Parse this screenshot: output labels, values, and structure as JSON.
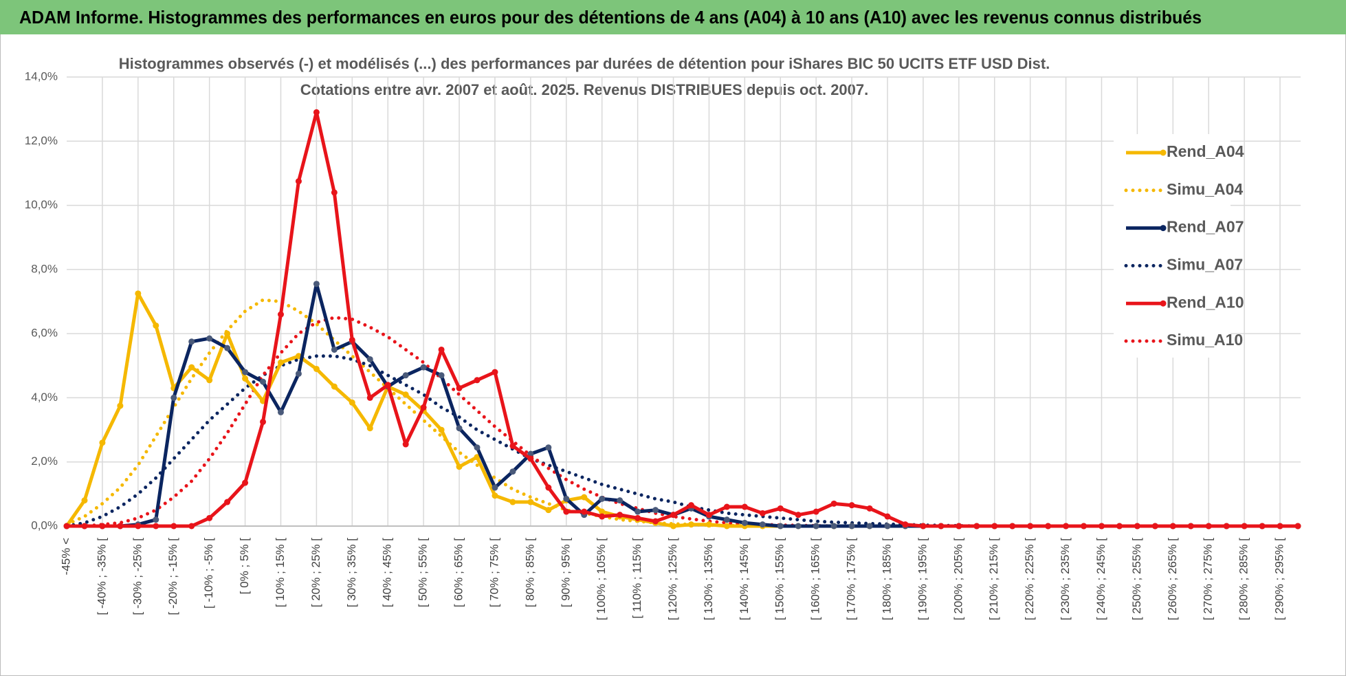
{
  "header": {
    "title": "ADAM Informe. Histogrammes des performances en euros pour des détentions de 4 ans (A04) à 10 ans (A10) avec les revenus connus distribués"
  },
  "chart_data": {
    "type": "line",
    "subtitle": [
      "Histogrammes observés (-) et modélisés (...) des performances par durées de détention pour iShares BIC 50 UCITS ETF USD Dist.",
      "Cotations entre avr. 2007 et août. 2025. Revenus DISTRIBUES depuis oct. 2007."
    ],
    "categories": [
      "-45% <",
      null,
      "[ -40% ; -35% [",
      null,
      "[ -30% ; -25% [",
      null,
      "[ -20% ; -15% [",
      null,
      "[ -10% ; -5% [",
      null,
      "[ 0% ; 5% [",
      null,
      "[ 10% ; 15% [",
      null,
      "[ 20% ; 25% [",
      null,
      "[ 30% ; 35% [",
      null,
      "[ 40% ; 45% [",
      null,
      "[ 50% ; 55% [",
      null,
      "[ 60% ; 65% [",
      null,
      "[ 70% ; 75% [",
      null,
      "[ 80% ; 85% [",
      null,
      "[ 90% ; 95% [",
      null,
      "[ 100% ; 105% [",
      null,
      "[ 110% ; 115% [",
      null,
      "[ 120% ; 125% [",
      null,
      "[ 130% ; 135% [",
      null,
      "[ 140% ; 145% [",
      null,
      "[ 150% ; 155% [",
      null,
      "[ 160% ; 165% [",
      null,
      "[ 170% ; 175% [",
      null,
      "[ 180% ; 185% [",
      null,
      "[ 190% ; 195% [",
      null,
      "[ 200% ; 205% [",
      null,
      "[ 210% ; 215% [",
      null,
      "[ 220% ; 225% [",
      null,
      "[ 230% ; 235% [",
      null,
      "[ 240% ; 245% [",
      null,
      "[ 250% ; 255% [",
      null,
      "[ 260% ; 265% [",
      null,
      "[ 270% ; 275% [",
      null,
      "[ 280% ; 285% [",
      null,
      "[ 290% ; 295% [",
      null
    ],
    "series": [
      {
        "name": "Rend_A04",
        "color": "#f5b800",
        "style": "solid",
        "values": [
          0,
          0.8,
          2.6,
          3.75,
          7.25,
          6.25,
          4.3,
          4.95,
          4.55,
          6.0,
          4.6,
          3.9,
          5.1,
          5.3,
          4.9,
          4.35,
          3.85,
          3.05,
          4.35,
          4.1,
          3.6,
          3.0,
          1.85,
          2.15,
          0.95,
          0.75,
          0.75,
          0.5,
          0.8,
          0.9,
          0.45,
          0.3,
          0.2,
          0.1,
          0,
          0.05,
          0.05,
          0,
          0,
          0,
          0,
          0,
          0,
          0,
          0,
          0,
          0,
          0,
          0,
          0,
          0,
          0,
          0,
          0,
          0,
          0,
          0,
          0,
          0,
          0,
          0,
          0,
          0,
          0,
          0,
          0,
          0,
          0,
          0,
          0
        ]
      },
      {
        "name": "Simu_A04",
        "color": "#f5b800",
        "style": "dotted",
        "values": [
          0.05,
          0.3,
          0.7,
          1.2,
          1.9,
          2.8,
          3.7,
          4.6,
          5.4,
          6.1,
          6.7,
          7.05,
          7.0,
          6.7,
          6.3,
          5.8,
          5.3,
          4.8,
          4.3,
          3.8,
          3.3,
          2.8,
          2.3,
          1.9,
          1.5,
          1.15,
          0.9,
          0.7,
          0.5,
          0.4,
          0.3,
          0.2,
          0.15,
          0.1,
          0.07,
          0.05,
          0.03,
          0.02,
          0.01,
          0,
          0,
          0,
          0,
          0,
          0,
          0,
          0,
          0,
          0,
          0,
          0,
          0,
          0,
          0,
          0,
          0,
          0,
          0,
          0,
          0,
          0,
          0,
          0,
          0,
          0,
          0,
          0,
          0,
          0,
          0
        ]
      },
      {
        "name": "Rend_A07",
        "color": "#0b2560",
        "style": "solid",
        "values": [
          0,
          0,
          0,
          0,
          0.05,
          0.2,
          4.0,
          5.75,
          5.85,
          5.55,
          4.8,
          4.5,
          3.55,
          4.75,
          7.55,
          5.5,
          5.75,
          5.2,
          4.35,
          4.7,
          4.95,
          4.7,
          3.05,
          2.45,
          1.2,
          1.7,
          2.25,
          2.45,
          0.85,
          0.35,
          0.85,
          0.8,
          0.45,
          0.5,
          0.35,
          0.55,
          0.3,
          0.2,
          0.1,
          0.05,
          0,
          0,
          0,
          0,
          0,
          0,
          0,
          0,
          0,
          0,
          0,
          0,
          0,
          0,
          0,
          0,
          0,
          0,
          0,
          0,
          0,
          0,
          0,
          0,
          0,
          0,
          0,
          0,
          0,
          0
        ]
      },
      {
        "name": "Simu_A07",
        "color": "#0b2560",
        "style": "dotted",
        "values": [
          0,
          0.1,
          0.3,
          0.6,
          1.0,
          1.5,
          2.1,
          2.7,
          3.3,
          3.8,
          4.3,
          4.7,
          5.0,
          5.2,
          5.3,
          5.3,
          5.2,
          5.0,
          4.7,
          4.4,
          4.1,
          3.7,
          3.4,
          3.0,
          2.7,
          2.4,
          2.1,
          1.9,
          1.7,
          1.5,
          1.3,
          1.15,
          1.0,
          0.85,
          0.75,
          0.6,
          0.5,
          0.4,
          0.35,
          0.3,
          0.25,
          0.2,
          0.15,
          0.12,
          0.1,
          0.08,
          0.06,
          0.05,
          0.03,
          0.02,
          0.01,
          0,
          0,
          0,
          0,
          0,
          0,
          0,
          0,
          0,
          0,
          0,
          0,
          0,
          0,
          0,
          0,
          0,
          0,
          0
        ]
      },
      {
        "name": "Rend_A10",
        "color": "#e8141a",
        "style": "solid",
        "values": [
          0,
          0,
          0,
          0,
          0,
          0,
          0,
          0,
          0.25,
          0.75,
          1.35,
          3.25,
          6.6,
          10.75,
          12.9,
          10.4,
          5.8,
          4.0,
          4.4,
          2.55,
          3.7,
          5.5,
          4.3,
          4.55,
          4.8,
          2.5,
          2.1,
          1.2,
          0.45,
          0.45,
          0.3,
          0.35,
          0.25,
          0.15,
          0.35,
          0.65,
          0.35,
          0.6,
          0.6,
          0.4,
          0.55,
          0.35,
          0.45,
          0.7,
          0.65,
          0.55,
          0.3,
          0.05,
          0,
          0,
          0,
          0,
          0,
          0,
          0,
          0,
          0,
          0,
          0,
          0,
          0,
          0,
          0,
          0,
          0,
          0,
          0,
          0,
          0,
          0
        ]
      },
      {
        "name": "Simu_A10",
        "color": "#e8141a",
        "style": "dotted",
        "values": [
          0,
          0,
          0.05,
          0.1,
          0.25,
          0.5,
          0.9,
          1.4,
          2.1,
          2.9,
          3.8,
          4.7,
          5.4,
          6.0,
          6.35,
          6.5,
          6.45,
          6.2,
          5.9,
          5.5,
          5.1,
          4.6,
          4.1,
          3.6,
          3.1,
          2.65,
          2.2,
          1.8,
          1.45,
          1.15,
          0.9,
          0.7,
          0.55,
          0.4,
          0.3,
          0.22,
          0.15,
          0.1,
          0.07,
          0.05,
          0.03,
          0.02,
          0.01,
          0,
          0,
          0,
          0,
          0,
          0,
          0,
          0,
          0,
          0,
          0,
          0,
          0,
          0,
          0,
          0,
          0,
          0,
          0,
          0,
          0,
          0,
          0,
          0,
          0,
          0,
          0
        ]
      }
    ],
    "ylim": [
      0,
      14
    ],
    "yticks": [
      {
        "value": 0,
        "label": "0,0%"
      },
      {
        "value": 2,
        "label": "2,0%"
      },
      {
        "value": 4,
        "label": "4,0%"
      },
      {
        "value": 6,
        "label": "6,0%"
      },
      {
        "value": 8,
        "label": "8,0%"
      },
      {
        "value": 10,
        "label": "10,0%"
      },
      {
        "value": 12,
        "label": "12,0%"
      },
      {
        "value": 14,
        "label": "14,0%"
      }
    ],
    "grid": true,
    "legend": "right"
  }
}
